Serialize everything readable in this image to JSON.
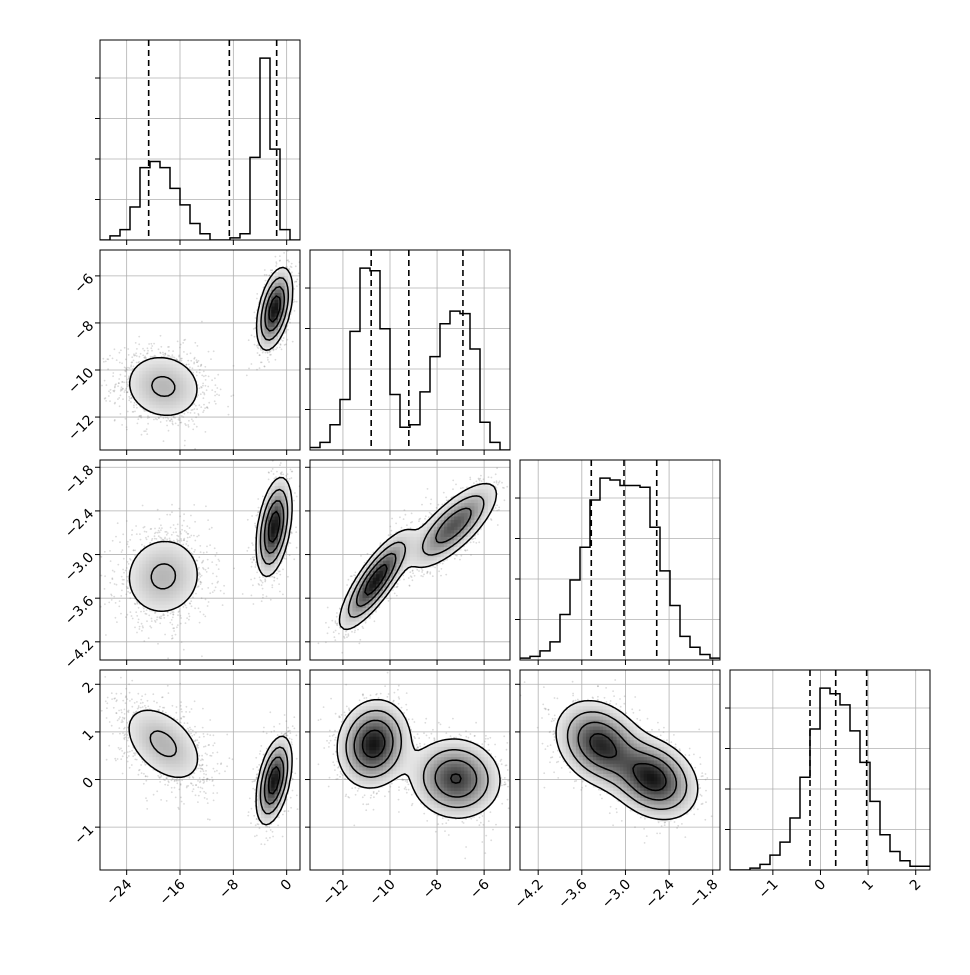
{
  "chart_data": {
    "type": "corner",
    "title": "",
    "n_params": 4,
    "grid": true,
    "colors": {
      "line": "#000000",
      "grid": "#b0b0b0",
      "scatter": "#7f7f7f",
      "background": "#ffffff"
    },
    "params": [
      {
        "range": [
          -28,
          2
        ],
        "ticks": [
          -24,
          -16,
          -8,
          0
        ],
        "tick_labels": [
          "−24",
          "−16",
          "−8",
          "0"
        ],
        "quantiles": [
          -20.7,
          -8.6,
          -1.5
        ]
      },
      {
        "range": [
          -13.4,
          -4.9
        ],
        "ticks": [
          -12,
          -10,
          -8,
          -6
        ],
        "tick_labels": [
          "−12",
          "−10",
          "−8",
          "−6"
        ],
        "quantiles": [
          -10.8,
          -9.2,
          -6.9
        ]
      },
      {
        "range": [
          -4.45,
          -1.7
        ],
        "ticks": [
          -4.2,
          -3.6,
          -3.0,
          -2.4,
          -1.8
        ],
        "tick_labels": [
          "−4.2",
          "−3.6",
          "−3.0",
          "−2.4",
          "−1.8"
        ],
        "quantiles": [
          -3.47,
          -3.02,
          -2.57
        ]
      },
      {
        "range": [
          -1.9,
          2.3
        ],
        "ticks": [
          -1,
          0,
          1,
          2
        ],
        "tick_labels": [
          "−1",
          "0",
          "1",
          "2"
        ],
        "quantiles": [
          -0.22,
          0.32,
          0.97
        ]
      }
    ],
    "histograms": [
      {
        "param": 0,
        "edges": [
          -28,
          -26.5,
          -25,
          -23.5,
          -22,
          -20.5,
          -19,
          -17.5,
          -16,
          -14.5,
          -13,
          -11.5,
          -10,
          -8.5,
          -7,
          -5.5,
          -4,
          -2.5,
          -1,
          0.5,
          2
        ],
        "counts": [
          0,
          2,
          5,
          16,
          35,
          38,
          35,
          25,
          17,
          8,
          3,
          0,
          0,
          1,
          3,
          40,
          88,
          44,
          5,
          0
        ]
      },
      {
        "param": 1,
        "edges": [
          -13.4,
          -12.975,
          -12.55,
          -12.125,
          -11.7,
          -11.275,
          -10.85,
          -10.425,
          -10,
          -9.575,
          -9.15,
          -8.725,
          -8.3,
          -7.875,
          -7.45,
          -7.025,
          -6.6,
          -6.175,
          -5.75,
          -5.325,
          -4.9
        ],
        "counts": [
          1,
          3,
          10,
          20,
          47,
          72,
          71,
          48,
          22,
          9,
          10,
          23,
          37,
          50,
          55,
          54,
          40,
          11,
          3,
          0
        ]
      },
      {
        "param": 2,
        "edges": [
          -4.45,
          -4.3125,
          -4.175,
          -4.0375,
          -3.9,
          -3.7625,
          -3.625,
          -3.4875,
          -3.35,
          -3.2125,
          -3.075,
          -2.9375,
          -2.8,
          -2.6625,
          -2.525,
          -2.3875,
          -2.25,
          -2.1125,
          -1.975,
          -1.8375,
          -1.7
        ],
        "counts": [
          1,
          2,
          5,
          10,
          25,
          44,
          62,
          88,
          100,
          99,
          96,
          96,
          95,
          73,
          49,
          30,
          13,
          7,
          3,
          1
        ]
      },
      {
        "param": 3,
        "edges": [
          -1.9,
          -1.69,
          -1.48,
          -1.27,
          -1.06,
          -0.85,
          -0.64,
          -0.43,
          -0.22,
          -0.01,
          0.2,
          0.41,
          0.62,
          0.83,
          1.04,
          1.25,
          1.46,
          1.67,
          1.88,
          2.09,
          2.3
        ],
        "counts": [
          0,
          0,
          1,
          3,
          8,
          15,
          28,
          50,
          76,
          98,
          95,
          89,
          75,
          58,
          37,
          19,
          10,
          5,
          2,
          2
        ]
      }
    ],
    "pairs": [
      {
        "x": 0,
        "y": 1,
        "modes": [
          {
            "cx": -18.5,
            "cy": -10.7,
            "sx": 3.5,
            "sy": 0.85,
            "rho": -0.1,
            "w": 0.5
          },
          {
            "cx": -1.8,
            "cy": -7.4,
            "sx": 1.3,
            "sy": 0.85,
            "rho": 0.45,
            "w": 0.5
          }
        ]
      },
      {
        "x": 0,
        "y": 2,
        "modes": [
          {
            "cx": -18.5,
            "cy": -3.3,
            "sx": 3.5,
            "sy": 0.33,
            "rho": 0.05,
            "w": 0.5
          },
          {
            "cx": -1.9,
            "cy": -2.62,
            "sx": 1.3,
            "sy": 0.33,
            "rho": 0.4,
            "w": 0.5
          }
        ]
      },
      {
        "x": 0,
        "y": 3,
        "modes": [
          {
            "cx": -18.5,
            "cy": 0.75,
            "sx": 3.5,
            "sy": 0.48,
            "rho": -0.45,
            "w": 0.5
          },
          {
            "cx": -1.9,
            "cy": -0.02,
            "sx": 1.3,
            "sy": 0.45,
            "rho": 0.45,
            "w": 0.5
          }
        ]
      },
      {
        "x": 1,
        "y": 2,
        "modes": [
          {
            "cx": -10.6,
            "cy": -3.35,
            "sx": 0.75,
            "sy": 0.33,
            "rho": 0.82,
            "w": 0.5
          },
          {
            "cx": -7.3,
            "cy": -2.6,
            "sx": 0.95,
            "sy": 0.3,
            "rho": 0.75,
            "w": 0.5
          }
        ]
      },
      {
        "x": 1,
        "y": 3,
        "modes": [
          {
            "cx": -10.7,
            "cy": 0.75,
            "sx": 0.75,
            "sy": 0.45,
            "rho": 0.1,
            "w": 0.5
          },
          {
            "cx": -7.2,
            "cy": 0.02,
            "sx": 0.95,
            "sy": 0.42,
            "rho": -0.05,
            "w": 0.5
          }
        ]
      },
      {
        "x": 2,
        "y": 3,
        "modes": [
          {
            "cx": -3.35,
            "cy": 0.75,
            "sx": 0.3,
            "sy": 0.45,
            "rho": -0.25,
            "w": 0.5
          },
          {
            "cx": -2.62,
            "cy": 0.02,
            "sx": 0.3,
            "sy": 0.42,
            "rho": -0.25,
            "w": 0.5
          }
        ]
      }
    ]
  }
}
